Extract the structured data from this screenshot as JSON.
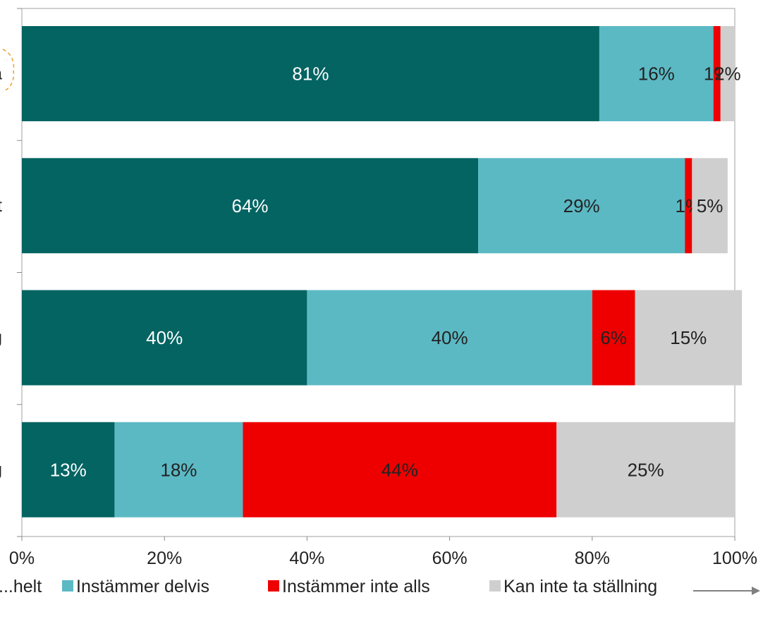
{
  "chart_data": {
    "type": "bar",
    "orientation": "horizontal",
    "stacked": "percent",
    "categories": [
      "a",
      "t",
      "g",
      "g"
    ],
    "series": [
      {
        "name": "...helt",
        "color": "#036462",
        "values": [
          81,
          64,
          40,
          13
        ]
      },
      {
        "name": "Instämmer delvis",
        "color": "#5bb9c4",
        "values": [
          16,
          29,
          40,
          18
        ]
      },
      {
        "name": "Instämmer inte alls",
        "color": "#ee0000",
        "values": [
          1,
          1,
          6,
          44
        ]
      },
      {
        "name": "Kan inte ta ställning",
        "color": "#cfcfcf",
        "values": [
          2,
          5,
          15,
          25
        ]
      }
    ],
    "data_labels": [
      [
        "81%",
        "16%",
        "1%",
        "2%"
      ],
      [
        "64%",
        "29%",
        "1%",
        "5%"
      ],
      [
        "40%",
        "40%",
        "6%",
        "15%"
      ],
      [
        "13%",
        "18%",
        "44%",
        "25%"
      ]
    ],
    "xlim": [
      0,
      100
    ],
    "xticks": [
      "0%",
      "20%",
      "40%",
      "60%",
      "80%",
      "100%"
    ],
    "grid": false,
    "legend_position": "bottom"
  }
}
